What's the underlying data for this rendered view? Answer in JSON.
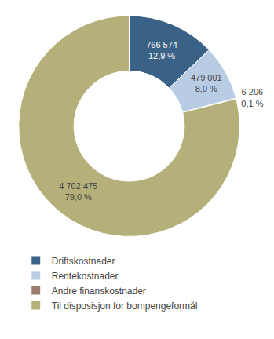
{
  "chart_data": {
    "type": "pie",
    "categories": [
      "Driftskostnader",
      "Rentekostnader",
      "Andre finanskostnader",
      "Til disposisjon for bompengeformål"
    ],
    "values": [
      766574,
      479001,
      6206,
      4702475
    ],
    "value_labels": [
      "766 574\n12,9 %",
      "479 001\n8,0 %",
      "6 206\n0,1 %",
      "4 702 475\n79,0 %"
    ],
    "colors": [
      "#3a6186",
      "#b8cce4",
      "#9b7b6a",
      "#b5b07a"
    ],
    "data_labels": true,
    "legend": "bottom"
  }
}
